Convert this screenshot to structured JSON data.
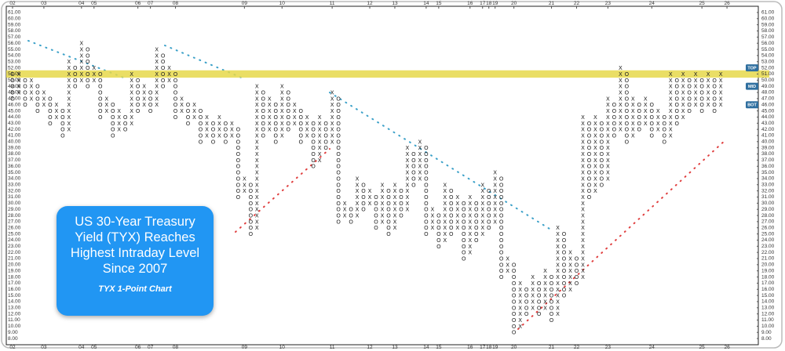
{
  "chart_data": {
    "type": "pnf",
    "title": "US 30-Year Treasury Yield (TYX) Reaches Highest Intraday Level Since 2007",
    "subtitle": "TYX 1-Point Chart",
    "x_color": "#222222",
    "o_color": "#222222",
    "ylim": [
      7.5,
      61.5
    ],
    "xlim": [
      -1,
      119
    ],
    "yticks": [
      {
        "value": 61,
        "label": "61.00"
      },
      {
        "value": 60,
        "label": "60.00"
      },
      {
        "value": 59,
        "label": "59.00"
      },
      {
        "value": 58,
        "label": "58.00"
      },
      {
        "value": 57,
        "label": "57.00"
      },
      {
        "value": 56,
        "label": "56.00"
      },
      {
        "value": 55,
        "label": "55.00"
      },
      {
        "value": 54,
        "label": "54.00"
      },
      {
        "value": 53,
        "label": "53.00"
      },
      {
        "value": 52,
        "label": "52.00"
      },
      {
        "value": 51,
        "label": "51.00"
      },
      {
        "value": 50,
        "label": "50.00"
      },
      {
        "value": 49,
        "label": "49.00"
      },
      {
        "value": 48,
        "label": "48.00"
      },
      {
        "value": 47,
        "label": "47.00"
      },
      {
        "value": 46,
        "label": "46.00"
      },
      {
        "value": 45,
        "label": "45.00"
      },
      {
        "value": 44,
        "label": "44.00"
      },
      {
        "value": 43,
        "label": "43.00"
      },
      {
        "value": 42,
        "label": "42.00"
      },
      {
        "value": 41,
        "label": "41.00"
      },
      {
        "value": 40,
        "label": "40.00"
      },
      {
        "value": 39,
        "label": "39.00"
      },
      {
        "value": 38,
        "label": "38.00"
      },
      {
        "value": 37,
        "label": "37.00"
      },
      {
        "value": 36,
        "label": "36.00"
      },
      {
        "value": 35,
        "label": "35.00"
      },
      {
        "value": 34,
        "label": "34.00"
      },
      {
        "value": 33,
        "label": "33.00"
      },
      {
        "value": 32,
        "label": "32.00"
      },
      {
        "value": 31,
        "label": "31.00"
      },
      {
        "value": 30,
        "label": "30.00"
      },
      {
        "value": 29,
        "label": "29.00"
      },
      {
        "value": 28,
        "label": "28.00"
      },
      {
        "value": 27,
        "label": "27.00"
      },
      {
        "value": 26,
        "label": "26.00"
      },
      {
        "value": 25,
        "label": "25.00"
      },
      {
        "value": 24,
        "label": "24.00"
      },
      {
        "value": 23,
        "label": "23.00"
      },
      {
        "value": 22,
        "label": "22.00"
      },
      {
        "value": 21,
        "label": "21.00"
      },
      {
        "value": 20,
        "label": "20.00"
      },
      {
        "value": 19,
        "label": "19.00"
      },
      {
        "value": 18,
        "label": "18.00"
      },
      {
        "value": 17,
        "label": "17.00"
      },
      {
        "value": 16,
        "label": "16.00"
      },
      {
        "value": 15,
        "label": "15.00"
      },
      {
        "value": 14,
        "label": "14.00"
      },
      {
        "value": 13,
        "label": "13.00"
      },
      {
        "value": 12,
        "label": "12.00"
      },
      {
        "value": 11,
        "label": "11.00"
      },
      {
        "value": 10,
        "label": "10.00"
      },
      {
        "value": 9,
        "label": "9.00"
      },
      {
        "value": 8,
        "label": "8.00"
      }
    ],
    "xticks": [
      {
        "value": 0,
        "label": "02"
      },
      {
        "value": 5,
        "label": "03"
      },
      {
        "value": 11,
        "label": "04"
      },
      {
        "value": 13,
        "label": "05"
      },
      {
        "value": 20,
        "label": "06"
      },
      {
        "value": 22,
        "label": "07"
      },
      {
        "value": 26,
        "label": "08"
      },
      {
        "value": 37,
        "label": "09"
      },
      {
        "value": 43,
        "label": "10"
      },
      {
        "value": 51,
        "label": "11"
      },
      {
        "value": 57,
        "label": "12"
      },
      {
        "value": 61,
        "label": "13"
      },
      {
        "value": 66,
        "label": "14"
      },
      {
        "value": 68,
        "label": "15"
      },
      {
        "value": 73,
        "label": "16"
      },
      {
        "value": 75,
        "label": "17"
      },
      {
        "value": 76,
        "label": "18"
      },
      {
        "value": 77,
        "label": "19"
      },
      {
        "value": 80,
        "label": "20"
      },
      {
        "value": 86,
        "label": "21"
      },
      {
        "value": 90,
        "label": "22"
      },
      {
        "value": 95,
        "label": "23"
      },
      {
        "value": 102,
        "label": "24"
      },
      {
        "value": 110,
        "label": "25"
      },
      {
        "value": 114,
        "label": "26"
      }
    ],
    "band": {
      "low": 50.4,
      "high": 51.6,
      "color": "#e6d84a"
    },
    "levels": [
      {
        "name": "TOP",
        "value": 52
      },
      {
        "name": "MID",
        "value": 49
      },
      {
        "name": "BOT",
        "value": 46
      }
    ],
    "level_color": "#2f6f9f",
    "columns": [
      {
        "type": "O",
        "low": 47,
        "high": 51
      },
      {
        "type": "X",
        "low": 48,
        "high": 51
      },
      {
        "type": "O",
        "low": 46,
        "high": 50
      },
      {
        "type": "X",
        "low": 47,
        "high": 50
      },
      {
        "type": "O",
        "low": 45,
        "high": 49
      },
      {
        "type": "X",
        "low": 46,
        "high": 48
      },
      {
        "type": "O",
        "low": 43,
        "high": 47
      },
      {
        "type": "X",
        "low": 44,
        "high": 46
      },
      {
        "type": "O",
        "low": 41,
        "high": 45
      },
      {
        "type": "X",
        "low": 42,
        "high": 53
      },
      {
        "type": "O",
        "low": 49,
        "high": 52
      },
      {
        "type": "X",
        "low": 50,
        "high": 56
      },
      {
        "type": "O",
        "low": 49,
        "high": 55
      },
      {
        "type": "X",
        "low": 50,
        "high": 52
      },
      {
        "type": "O",
        "low": 44,
        "high": 51
      },
      {
        "type": "X",
        "low": 45,
        "high": 47
      },
      {
        "type": "O",
        "low": 41,
        "high": 46
      },
      {
        "type": "X",
        "low": 42,
        "high": 45
      },
      {
        "type": "O",
        "low": 42,
        "high": 44
      },
      {
        "type": "X",
        "low": 43,
        "high": 51
      },
      {
        "type": "O",
        "low": 45,
        "high": 50
      },
      {
        "type": "X",
        "low": 46,
        "high": 49
      },
      {
        "type": "O",
        "low": 45,
        "high": 48
      },
      {
        "type": "X",
        "low": 46,
        "high": 55
      },
      {
        "type": "O",
        "low": 49,
        "high": 54
      },
      {
        "type": "X",
        "low": 50,
        "high": 52
      },
      {
        "type": "O",
        "low": 44,
        "high": 51
      },
      {
        "type": "X",
        "low": 45,
        "high": 47
      },
      {
        "type": "O",
        "low": 43,
        "high": 46
      },
      {
        "type": "X",
        "low": 44,
        "high": 46
      },
      {
        "type": "O",
        "low": 40,
        "high": 45
      },
      {
        "type": "X",
        "low": 41,
        "high": 44
      },
      {
        "type": "O",
        "low": 40,
        "high": 43
      },
      {
        "type": "X",
        "low": 41,
        "high": 44
      },
      {
        "type": "O",
        "low": 40,
        "high": 43
      },
      {
        "type": "X",
        "low": 41,
        "high": 43
      },
      {
        "type": "O",
        "low": 31,
        "high": 42
      },
      {
        "type": "X",
        "low": 32,
        "high": 34
      },
      {
        "type": "O",
        "low": 25,
        "high": 33
      },
      {
        "type": "X",
        "low": 26,
        "high": 49
      },
      {
        "type": "O",
        "low": 41,
        "high": 48
      },
      {
        "type": "X",
        "low": 42,
        "high": 47
      },
      {
        "type": "O",
        "low": 40,
        "high": 46
      },
      {
        "type": "X",
        "low": 41,
        "high": 49
      },
      {
        "type": "O",
        "low": 42,
        "high": 48
      },
      {
        "type": "X",
        "low": 43,
        "high": 46
      },
      {
        "type": "O",
        "low": 40,
        "high": 45
      },
      {
        "type": "X",
        "low": 41,
        "high": 44
      },
      {
        "type": "O",
        "low": 36,
        "high": 43
      },
      {
        "type": "X",
        "low": 37,
        "high": 44
      },
      {
        "type": "O",
        "low": 39,
        "high": 43
      },
      {
        "type": "X",
        "low": 40,
        "high": 48
      },
      {
        "type": "O",
        "low": 27,
        "high": 47
      },
      {
        "type": "X",
        "low": 28,
        "high": 30
      },
      {
        "type": "O",
        "low": 27,
        "high": 29
      },
      {
        "type": "X",
        "low": 28,
        "high": 34
      },
      {
        "type": "O",
        "low": 29,
        "high": 33
      },
      {
        "type": "X",
        "low": 30,
        "high": 32
      },
      {
        "type": "O",
        "low": 26,
        "high": 31
      },
      {
        "type": "X",
        "low": 27,
        "high": 33
      },
      {
        "type": "O",
        "low": 25,
        "high": 32
      },
      {
        "type": "X",
        "low": 26,
        "high": 33
      },
      {
        "type": "O",
        "low": 28,
        "high": 32
      },
      {
        "type": "X",
        "low": 29,
        "high": 39
      },
      {
        "type": "O",
        "low": 33,
        "high": 38
      },
      {
        "type": "X",
        "low": 34,
        "high": 40
      },
      {
        "type": "O",
        "low": 25,
        "high": 39
      },
      {
        "type": "X",
        "low": 26,
        "high": 29
      },
      {
        "type": "O",
        "low": 23,
        "high": 28
      },
      {
        "type": "X",
        "low": 24,
        "high": 33
      },
      {
        "type": "O",
        "low": 25,
        "high": 32
      },
      {
        "type": "X",
        "low": 26,
        "high": 31
      },
      {
        "type": "O",
        "low": 21,
        "high": 30
      },
      {
        "type": "X",
        "low": 22,
        "high": 31
      },
      {
        "type": "O",
        "low": 24,
        "high": 30
      },
      {
        "type": "X",
        "low": 25,
        "high": 33
      },
      {
        "type": "O",
        "low": 26,
        "high": 32
      },
      {
        "type": "X",
        "low": 27,
        "high": 35
      },
      {
        "type": "O",
        "low": 18,
        "high": 34
      },
      {
        "type": "X",
        "low": 19,
        "high": 21
      },
      {
        "type": "O",
        "low": 9,
        "high": 20
      },
      {
        "type": "X",
        "low": 10,
        "high": 17
      },
      {
        "type": "O",
        "low": 12,
        "high": 16
      },
      {
        "type": "X",
        "low": 13,
        "high": 18
      },
      {
        "type": "O",
        "low": 12,
        "high": 17
      },
      {
        "type": "X",
        "low": 13,
        "high": 19
      },
      {
        "type": "O",
        "low": 11,
        "high": 18
      },
      {
        "type": "X",
        "low": 12,
        "high": 26
      },
      {
        "type": "O",
        "low": 15,
        "high": 25
      },
      {
        "type": "X",
        "low": 16,
        "high": 22
      },
      {
        "type": "O",
        "low": 17,
        "high": 21
      },
      {
        "type": "X",
        "low": 18,
        "high": 44
      },
      {
        "type": "O",
        "low": 31,
        "high": 43
      },
      {
        "type": "X",
        "low": 32,
        "high": 44
      },
      {
        "type": "O",
        "low": 33,
        "high": 43
      },
      {
        "type": "X",
        "low": 34,
        "high": 47
      },
      {
        "type": "O",
        "low": 41,
        "high": 46
      },
      {
        "type": "X",
        "low": 42,
        "high": 52
      },
      {
        "type": "O",
        "low": 40,
        "high": 51
      },
      {
        "type": "X",
        "low": 41,
        "high": 47
      },
      {
        "type": "O",
        "low": 42,
        "high": 46
      },
      {
        "type": "X",
        "low": 43,
        "high": 47
      },
      {
        "type": "O",
        "low": 41,
        "high": 46
      },
      {
        "type": "X",
        "low": 42,
        "high": 45
      },
      {
        "type": "O",
        "low": 40,
        "high": 44
      },
      {
        "type": "X",
        "low": 41,
        "high": 51
      },
      {
        "type": "O",
        "low": 43,
        "high": 50
      },
      {
        "type": "X",
        "low": 44,
        "high": 51
      },
      {
        "type": "O",
        "low": 45,
        "high": 50
      },
      {
        "type": "X",
        "low": 46,
        "high": 51
      },
      {
        "type": "O",
        "low": 45,
        "high": 50
      },
      {
        "type": "X",
        "low": 46,
        "high": 51
      },
      {
        "type": "O",
        "low": 45,
        "high": 50
      },
      {
        "type": "X",
        "low": 46,
        "high": 51
      }
    ]
  }
}
